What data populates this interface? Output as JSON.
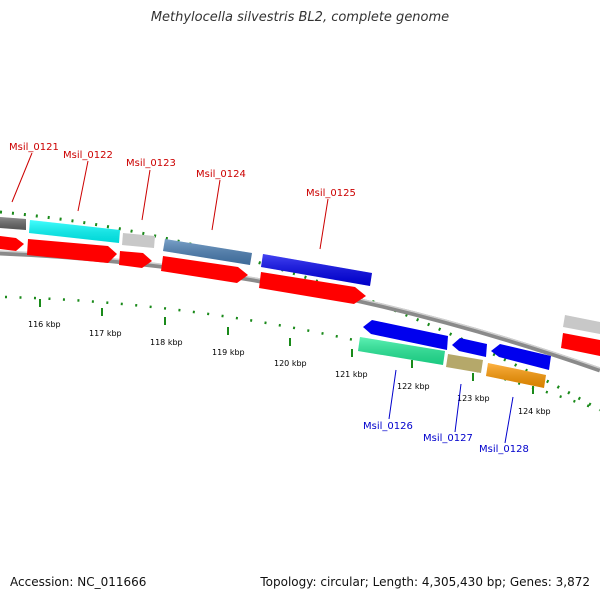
{
  "title": "Methylocella silvestris BL2, complete genome",
  "footer": {
    "accession": "Accession: NC_011666",
    "summary": "Topology: circular; Length: 4,305,430 bp; Genes: 3,872"
  },
  "ticks": [
    "116 kbp",
    "117 kbp",
    "118 kbp",
    "119 kbp",
    "120 kbp",
    "121 kbp",
    "122 kbp",
    "123 kbp",
    "124 kbp"
  ],
  "genes": [
    {
      "label": "Msil_0121",
      "strand": "top",
      "color": "#cc0000"
    },
    {
      "label": "Msil_0122",
      "strand": "top",
      "color": "#cc0000"
    },
    {
      "label": "Msil_0123",
      "strand": "top",
      "color": "#cc0000"
    },
    {
      "label": "Msil_0124",
      "strand": "top",
      "color": "#cc0000"
    },
    {
      "label": "Msil_0125",
      "strand": "top",
      "color": "#cc0000"
    },
    {
      "label": "Msil_0126",
      "strand": "bottom",
      "color": "#0000cc"
    },
    {
      "label": "Msil_0127",
      "strand": "bottom",
      "color": "#0000cc"
    },
    {
      "label": "Msil_0128",
      "strand": "bottom",
      "color": "#0000cc"
    }
  ],
  "colors": {
    "backbone": "#8a8a8a",
    "cds": "#ff0000",
    "tick_dots": "#1a8a1a",
    "cog_cyan": "#00ffff",
    "cog_gray": "#c8c8c8",
    "cog_darkgray": "#666666",
    "cog_steelblue": "#4a7fb5",
    "cog_blue": "#0000ee",
    "cog_green": "#22ee99",
    "cog_olive": "#b5a86a",
    "cog_orange": "#ff9900"
  }
}
